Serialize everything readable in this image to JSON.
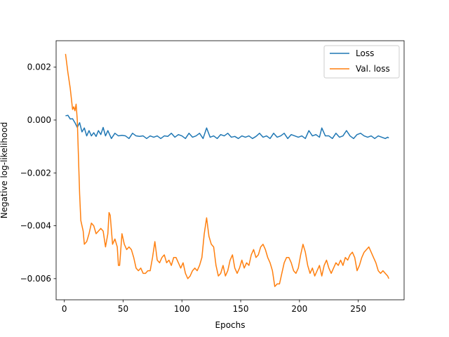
{
  "chart_data": {
    "type": "line",
    "xlabel": "Epochs",
    "ylabel": "Negative log-likelihood",
    "xlim": [
      -7,
      289
    ],
    "ylim": [
      -0.0068,
      0.003
    ],
    "x_ticks": [
      0,
      50,
      100,
      150,
      200,
      250
    ],
    "x_tick_labels": [
      "0",
      "50",
      "100",
      "150",
      "200",
      "250"
    ],
    "y_ticks": [
      0.002,
      0.0,
      -0.002,
      -0.004,
      -0.006
    ],
    "y_tick_labels": [
      "0.002",
      "0.000",
      "−0.002",
      "−0.004",
      "−0.006"
    ],
    "grid": false,
    "legend_position": "top-right",
    "series": [
      {
        "name": "Loss",
        "color": "#1f77b4",
        "points": [
          [
            1,
            0.00016
          ],
          [
            3,
            0.00018
          ],
          [
            5,
            4e-05
          ],
          [
            7,
            5e-05
          ],
          [
            9,
            -0.0001
          ],
          [
            11,
            -0.00028
          ],
          [
            13,
            -0.0001
          ],
          [
            15,
            -0.00045
          ],
          [
            17,
            -0.0003
          ],
          [
            19,
            -0.0006
          ],
          [
            21,
            -0.0004
          ],
          [
            23,
            -0.0006
          ],
          [
            25,
            -0.00048
          ],
          [
            27,
            -0.00062
          ],
          [
            29,
            -0.0004
          ],
          [
            31,
            -0.00055
          ],
          [
            33,
            -0.00028
          ],
          [
            35,
            -0.0006
          ],
          [
            37,
            -0.0004
          ],
          [
            40,
            -0.0007
          ],
          [
            43,
            -0.0005
          ],
          [
            46,
            -0.0006
          ],
          [
            49,
            -0.00058
          ],
          [
            52,
            -0.0006
          ],
          [
            55,
            -0.0007
          ],
          [
            58,
            -0.0005
          ],
          [
            61,
            -0.0006
          ],
          [
            64,
            -0.00062
          ],
          [
            67,
            -0.0006
          ],
          [
            70,
            -0.0007
          ],
          [
            73,
            -0.0006
          ],
          [
            76,
            -0.00065
          ],
          [
            79,
            -0.0006
          ],
          [
            82,
            -0.0007
          ],
          [
            85,
            -0.0006
          ],
          [
            88,
            -0.00062
          ],
          [
            91,
            -0.0005
          ],
          [
            94,
            -0.00065
          ],
          [
            97,
            -0.00055
          ],
          [
            100,
            -0.0006
          ],
          [
            103,
            -0.0007
          ],
          [
            106,
            -0.0005
          ],
          [
            109,
            -0.00065
          ],
          [
            112,
            -0.0006
          ],
          [
            115,
            -0.0005
          ],
          [
            118,
            -0.0007
          ],
          [
            121,
            -0.0003
          ],
          [
            124,
            -0.00065
          ],
          [
            127,
            -0.0006
          ],
          [
            130,
            -0.0007
          ],
          [
            133,
            -0.00055
          ],
          [
            136,
            -0.0006
          ],
          [
            139,
            -0.0005
          ],
          [
            142,
            -0.00065
          ],
          [
            145,
            -0.00062
          ],
          [
            148,
            -0.0007
          ],
          [
            151,
            -0.0006
          ],
          [
            154,
            -0.00065
          ],
          [
            157,
            -0.0006
          ],
          [
            160,
            -0.0007
          ],
          [
            163,
            -0.00062
          ],
          [
            166,
            -0.0005
          ],
          [
            169,
            -0.00065
          ],
          [
            172,
            -0.0006
          ],
          [
            175,
            -0.0007
          ],
          [
            178,
            -0.0005
          ],
          [
            181,
            -0.00065
          ],
          [
            184,
            -0.0006
          ],
          [
            187,
            -0.0005
          ],
          [
            190,
            -0.0007
          ],
          [
            193,
            -0.00055
          ],
          [
            196,
            -0.0006
          ],
          [
            199,
            -0.00065
          ],
          [
            202,
            -0.0006
          ],
          [
            205,
            -0.0007
          ],
          [
            208,
            -0.0004
          ],
          [
            211,
            -0.0006
          ],
          [
            214,
            -0.00055
          ],
          [
            217,
            -0.00065
          ],
          [
            219,
            -0.0003
          ],
          [
            222,
            -0.0006
          ],
          [
            225,
            -0.0006
          ],
          [
            228,
            -0.0007
          ],
          [
            231,
            -0.0005
          ],
          [
            234,
            -0.00065
          ],
          [
            237,
            -0.0006
          ],
          [
            240,
            -0.0004
          ],
          [
            243,
            -0.0006
          ],
          [
            246,
            -0.0007
          ],
          [
            249,
            -0.00055
          ],
          [
            252,
            -0.0005
          ],
          [
            255,
            -0.0006
          ],
          [
            258,
            -0.00065
          ],
          [
            261,
            -0.0006
          ],
          [
            264,
            -0.0007
          ],
          [
            267,
            -0.0006
          ],
          [
            270,
            -0.00065
          ],
          [
            273,
            -0.0007
          ],
          [
            275,
            -0.00065
          ],
          [
            276,
            -0.00068
          ]
        ]
      },
      {
        "name": "Val. loss",
        "color": "#ff7f0e",
        "points": [
          [
            1,
            0.0025
          ],
          [
            3,
            0.0018
          ],
          [
            5,
            0.0012
          ],
          [
            7,
            0.0004
          ],
          [
            8,
            0.0005
          ],
          [
            9,
            0.00035
          ],
          [
            10,
            0.0006
          ],
          [
            11,
            0.0
          ],
          [
            12,
            -0.0014
          ],
          [
            13,
            -0.0028
          ],
          [
            14,
            -0.0038
          ],
          [
            16,
            -0.0042
          ],
          [
            17,
            -0.0047
          ],
          [
            19,
            -0.0046
          ],
          [
            21,
            -0.0043
          ],
          [
            23,
            -0.0039
          ],
          [
            25,
            -0.004
          ],
          [
            27,
            -0.0043
          ],
          [
            29,
            -0.0042
          ],
          [
            31,
            -0.0041
          ],
          [
            33,
            -0.0042
          ],
          [
            35,
            -0.0048
          ],
          [
            37,
            -0.0043
          ],
          [
            38,
            -0.0035
          ],
          [
            39,
            -0.0036
          ],
          [
            41,
            -0.0047
          ],
          [
            43,
            -0.0045
          ],
          [
            45,
            -0.0048
          ],
          [
            46,
            -0.0055
          ],
          [
            47,
            -0.0055
          ],
          [
            49,
            -0.0043
          ],
          [
            51,
            -0.0047
          ],
          [
            53,
            -0.0049
          ],
          [
            55,
            -0.0048
          ],
          [
            57,
            -0.0049
          ],
          [
            59,
            -0.0052
          ],
          [
            61,
            -0.0056
          ],
          [
            63,
            -0.0057
          ],
          [
            65,
            -0.0056
          ],
          [
            67,
            -0.0058
          ],
          [
            69,
            -0.0058
          ],
          [
            71,
            -0.0057
          ],
          [
            73,
            -0.0057
          ],
          [
            75,
            -0.0052
          ],
          [
            77,
            -0.0046
          ],
          [
            79,
            -0.0053
          ],
          [
            81,
            -0.0054
          ],
          [
            83,
            -0.0052
          ],
          [
            85,
            -0.0051
          ],
          [
            87,
            -0.0054
          ],
          [
            89,
            -0.0053
          ],
          [
            91,
            -0.0055
          ],
          [
            93,
            -0.0052
          ],
          [
            95,
            -0.0052
          ],
          [
            97,
            -0.0054
          ],
          [
            99,
            -0.0056
          ],
          [
            101,
            -0.0054
          ],
          [
            103,
            -0.0058
          ],
          [
            105,
            -0.006
          ],
          [
            107,
            -0.0059
          ],
          [
            109,
            -0.0057
          ],
          [
            111,
            -0.0056
          ],
          [
            113,
            -0.0057
          ],
          [
            115,
            -0.0055
          ],
          [
            117,
            -0.0052
          ],
          [
            119,
            -0.0043
          ],
          [
            121,
            -0.0037
          ],
          [
            123,
            -0.0044
          ],
          [
            125,
            -0.0047
          ],
          [
            127,
            -0.0048
          ],
          [
            129,
            -0.0055
          ],
          [
            131,
            -0.0059
          ],
          [
            133,
            -0.0058
          ],
          [
            135,
            -0.0055
          ],
          [
            137,
            -0.0059
          ],
          [
            139,
            -0.0057
          ],
          [
            141,
            -0.0053
          ],
          [
            143,
            -0.0051
          ],
          [
            145,
            -0.0056
          ],
          [
            147,
            -0.0058
          ],
          [
            149,
            -0.0056
          ],
          [
            151,
            -0.0053
          ],
          [
            153,
            -0.0056
          ],
          [
            155,
            -0.0054
          ],
          [
            157,
            -0.0055
          ],
          [
            159,
            -0.0051
          ],
          [
            161,
            -0.0049
          ],
          [
            163,
            -0.0052
          ],
          [
            165,
            -0.0051
          ],
          [
            167,
            -0.0048
          ],
          [
            169,
            -0.0047
          ],
          [
            171,
            -0.0049
          ],
          [
            173,
            -0.0052
          ],
          [
            175,
            -0.0054
          ],
          [
            177,
            -0.0057
          ],
          [
            179,
            -0.0063
          ],
          [
            181,
            -0.0062
          ],
          [
            183,
            -0.0062
          ],
          [
            185,
            -0.0058
          ],
          [
            187,
            -0.0054
          ],
          [
            189,
            -0.0052
          ],
          [
            191,
            -0.0052
          ],
          [
            193,
            -0.0054
          ],
          [
            195,
            -0.0057
          ],
          [
            197,
            -0.0058
          ],
          [
            199,
            -0.0056
          ],
          [
            201,
            -0.0051
          ],
          [
            203,
            -0.0047
          ],
          [
            205,
            -0.005
          ],
          [
            207,
            -0.0055
          ],
          [
            209,
            -0.0058
          ],
          [
            211,
            -0.0056
          ],
          [
            213,
            -0.0059
          ],
          [
            215,
            -0.0057
          ],
          [
            217,
            -0.0055
          ],
          [
            219,
            -0.0059
          ],
          [
            221,
            -0.0055
          ],
          [
            223,
            -0.0053
          ],
          [
            225,
            -0.0056
          ],
          [
            227,
            -0.0058
          ],
          [
            229,
            -0.0056
          ],
          [
            231,
            -0.0054
          ],
          [
            233,
            -0.0055
          ],
          [
            235,
            -0.0053
          ],
          [
            237,
            -0.0055
          ],
          [
            239,
            -0.0052
          ],
          [
            241,
            -0.0053
          ],
          [
            243,
            -0.0051
          ],
          [
            245,
            -0.005
          ],
          [
            247,
            -0.0052
          ],
          [
            249,
            -0.0057
          ],
          [
            251,
            -0.0055
          ],
          [
            253,
            -0.0052
          ],
          [
            255,
            -0.005
          ],
          [
            257,
            -0.0049
          ],
          [
            259,
            -0.0048
          ],
          [
            261,
            -0.005
          ],
          [
            263,
            -0.0052
          ],
          [
            265,
            -0.0054
          ],
          [
            267,
            -0.0057
          ],
          [
            269,
            -0.0058
          ],
          [
            271,
            -0.0057
          ],
          [
            273,
            -0.0058
          ],
          [
            275,
            -0.0059
          ],
          [
            276,
            -0.006
          ]
        ]
      }
    ]
  }
}
